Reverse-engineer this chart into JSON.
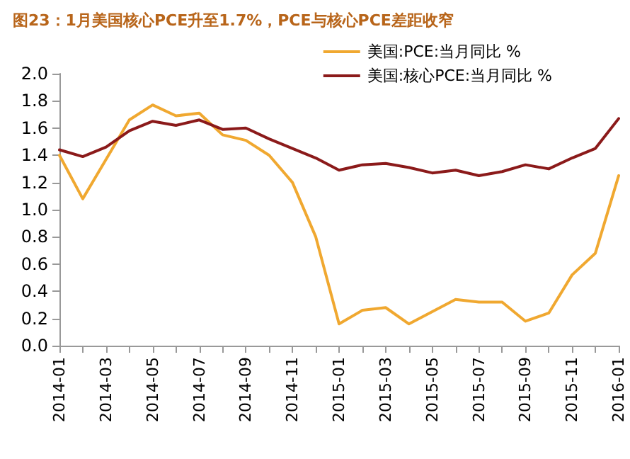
{
  "chart_data": {
    "type": "line",
    "title": "图23：1月美国核心PCE升至1.7%，PCE与核心PCE差距收窄",
    "categories": [
      "2014-01",
      null,
      "2014-03",
      null,
      "2014-05",
      null,
      "2014-07",
      null,
      "2014-09",
      null,
      "2014-11",
      null,
      "2015-01",
      null,
      "2015-03",
      null,
      "2015-05",
      null,
      "2015-07",
      null,
      "2015-09",
      null,
      "2015-11",
      null,
      "2016-01"
    ],
    "series": [
      {
        "name": "美国:PCE:当月同比 %",
        "color": "#f0a830",
        "values": [
          1.4,
          1.08,
          1.37,
          1.66,
          1.77,
          1.69,
          1.71,
          1.55,
          1.51,
          1.4,
          1.2,
          0.8,
          0.16,
          0.26,
          0.28,
          0.16,
          0.25,
          0.34,
          0.32,
          0.32,
          0.18,
          0.24,
          0.52,
          0.68,
          1.25
        ]
      },
      {
        "name": "美国:核心PCE:当月同比 %",
        "color": "#8b1a1a",
        "values": [
          1.44,
          1.39,
          1.46,
          1.58,
          1.65,
          1.62,
          1.66,
          1.59,
          1.6,
          1.52,
          1.45,
          1.38,
          1.29,
          1.33,
          1.34,
          1.31,
          1.27,
          1.29,
          1.25,
          1.28,
          1.33,
          1.3,
          1.38,
          1.45,
          1.67
        ]
      }
    ],
    "ylim": [
      0,
      2
    ],
    "yticks": [
      {
        "value": 0,
        "label": "0.0"
      },
      {
        "value": 0.2,
        "label": "0.2"
      },
      {
        "value": 0.4,
        "label": "0.4"
      },
      {
        "value": 0.6,
        "label": "0.6"
      },
      {
        "value": 0.8,
        "label": "0.8"
      },
      {
        "value": 1,
        "label": "1.0"
      },
      {
        "value": 1.2,
        "label": "1.2"
      },
      {
        "value": 1.4,
        "label": "1.4"
      },
      {
        "value": 1.6,
        "label": "1.6"
      },
      {
        "value": 1.8,
        "label": "1.8"
      },
      {
        "value": 2,
        "label": "2.0"
      }
    ],
    "grid": false,
    "legend": "top right",
    "marker": "none",
    "line_style": "solid"
  }
}
